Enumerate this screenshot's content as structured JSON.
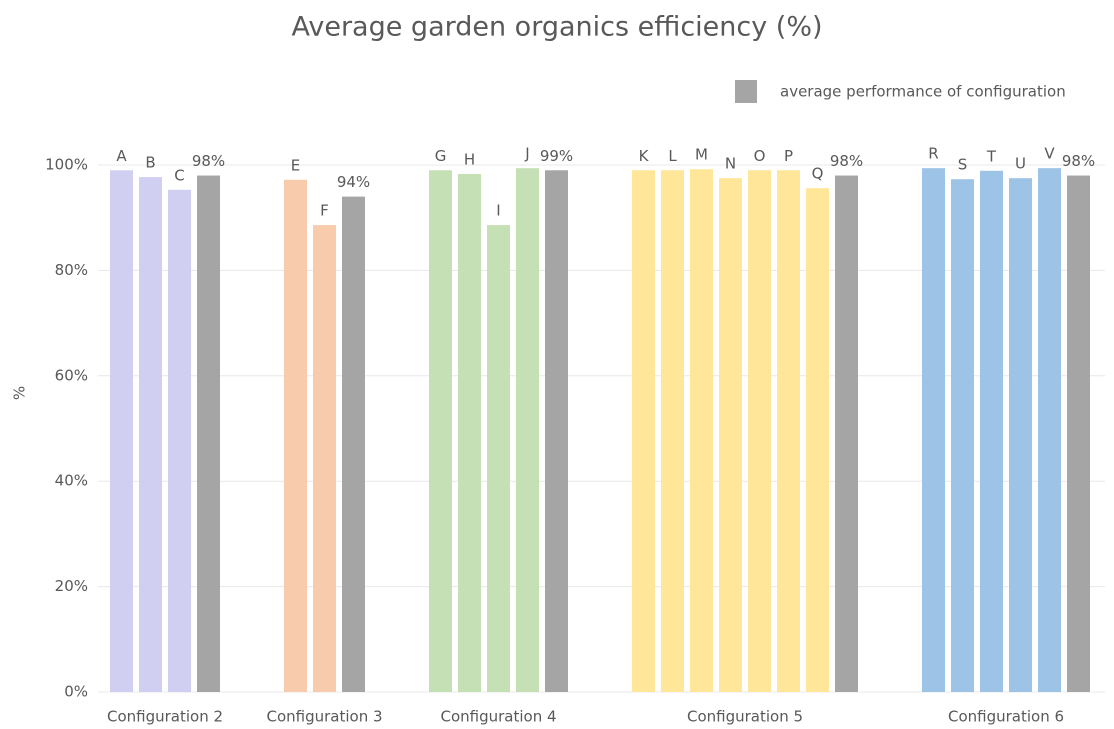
{
  "chart_data": {
    "type": "grouped_bar",
    "title": "Average garden organics efficiency (%)",
    "y_label": "%",
    "legend": {
      "label": "average performance of configuration",
      "color": "#a5a5a5"
    },
    "ylim": [
      0,
      100
    ],
    "yticks": [
      {
        "value": 0,
        "label": "0%"
      },
      {
        "value": 20,
        "label": "20%"
      },
      {
        "value": 40,
        "label": "40%"
      },
      {
        "value": 60,
        "label": "60%"
      },
      {
        "value": 80,
        "label": "80%"
      },
      {
        "value": 100,
        "label": "100%"
      }
    ],
    "grid": true,
    "groups": [
      {
        "name": "Configuration 2",
        "color": "#d1cff1",
        "bar_labels": [
          "A",
          "B",
          "C"
        ],
        "values": [
          99,
          97.7,
          95.3
        ],
        "average": 98,
        "average_label": "98%"
      },
      {
        "name": "Configuration 3",
        "color": "#f8cbad",
        "bar_labels": [
          "E",
          "F"
        ],
        "values": [
          97.2,
          88.6
        ],
        "average": 94,
        "average_label": "94%"
      },
      {
        "name": "Configuration 4",
        "color": "#c5e0b4",
        "bar_labels": [
          "G",
          "H",
          "I",
          "J"
        ],
        "values": [
          99,
          98.3,
          88.6,
          99.4
        ],
        "average": 99,
        "average_label": "99%"
      },
      {
        "name": "Configuration 5",
        "color": "#ffe699",
        "bar_labels": [
          "K",
          "L",
          "M",
          "N",
          "O",
          "P",
          "Q"
        ],
        "values": [
          99,
          99,
          99.2,
          97.5,
          99,
          99,
          95.6
        ],
        "average": 98,
        "average_label": "98%"
      },
      {
        "name": "Configuration 6",
        "color": "#9dc3e6",
        "bar_labels": [
          "R",
          "S",
          "T",
          "U",
          "V"
        ],
        "values": [
          99.4,
          97.3,
          98.9,
          97.5,
          99.4
        ],
        "average": 98,
        "average_label": "98%"
      }
    ]
  }
}
